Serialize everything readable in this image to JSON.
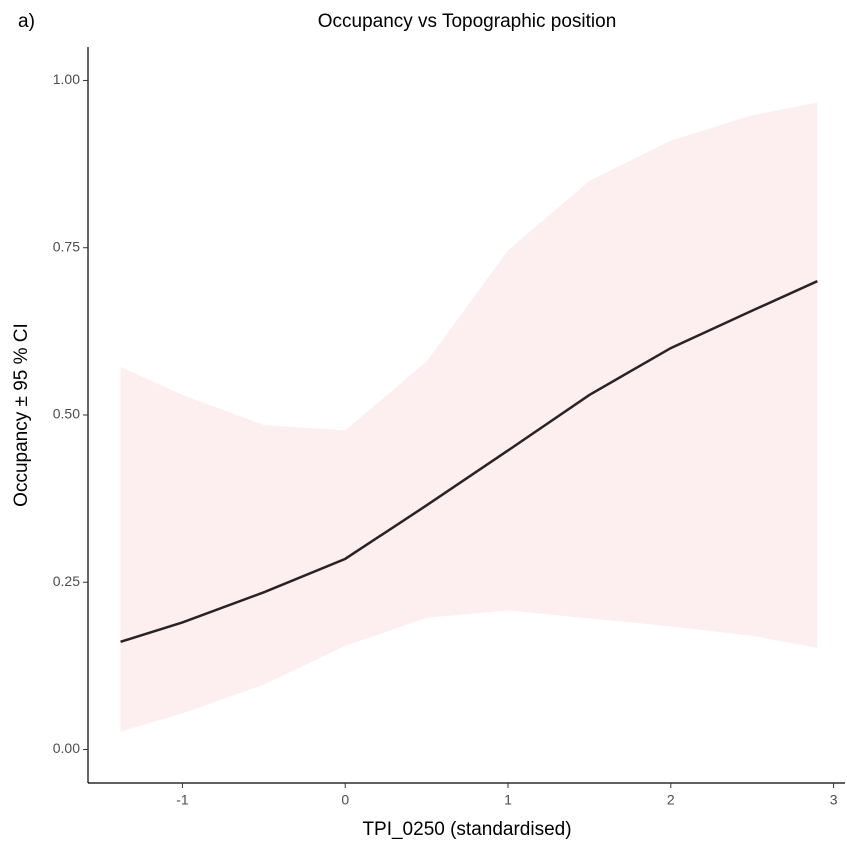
{
  "chart_data": {
    "type": "line",
    "panel_label": "a)",
    "title": "Occupancy vs Topographic position",
    "x_label": "TPI_0250 (standardised)",
    "y_label": "Occupancy ± 95 % CI",
    "x": [
      -1.38,
      -1,
      -0.5,
      0,
      0.5,
      1,
      1.5,
      2,
      2.5,
      2.9
    ],
    "series": [
      {
        "color": "#2b2226",
        "band_color": "#fdeef0",
        "values": [
          0.161,
          0.19,
          0.235,
          0.285,
          0.365,
          0.447,
          0.53,
          0.6,
          0.656,
          0.7
        ],
        "lower": [
          0.027,
          0.054,
          0.097,
          0.155,
          0.197,
          0.208,
          0.196,
          0.184,
          0.17,
          0.152
        ],
        "upper": [
          0.572,
          0.53,
          0.485,
          0.477,
          0.58,
          0.746,
          0.85,
          0.91,
          0.948,
          0.967
        ]
      }
    ],
    "xlim": [
      -1.58,
      3.07
    ],
    "ylim": [
      -0.05,
      1.05
    ],
    "xticks": [
      -1,
      0,
      1,
      2,
      3
    ],
    "yticks": [
      {
        "value": 0,
        "label": "0.00"
      },
      {
        "value": 0.25,
        "label": "0.25"
      },
      {
        "value": 0.5,
        "label": "0.50"
      },
      {
        "value": 0.75,
        "label": "0.75"
      },
      {
        "value": 1,
        "label": "1.00"
      }
    ],
    "grid": false
  }
}
